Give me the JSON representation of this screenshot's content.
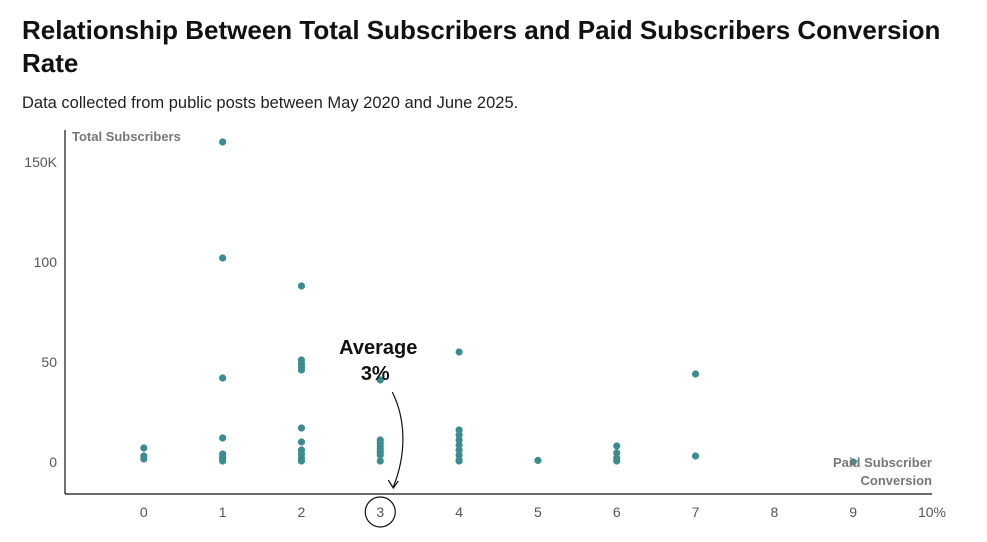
{
  "header": {
    "title": "Relationship Between Total Subscribers and Paid Subscribers Conversion Rate",
    "subtitle": "Data collected from public posts between May 2020 and June 2025."
  },
  "colors": {
    "point": "#3a8c90",
    "axis": "#111111",
    "tick": "#555555",
    "axis_title": "#777777"
  },
  "chart_data": {
    "type": "scatter",
    "title": "Relationship Between Total Subscribers and Paid Subscribers Conversion Rate",
    "subtitle": "Data collected from public posts between May 2020 and June 2025.",
    "xlabel": "Paid Subscriber Conversion",
    "ylabel": "Total Subscribers",
    "xlim": [
      -1,
      10
    ],
    "ylim": [
      -16,
      166
    ],
    "x_ticks": [
      0,
      1,
      2,
      3,
      4,
      5,
      6,
      7,
      8,
      9,
      10
    ],
    "x_tick_labels": [
      "0",
      "1",
      "2",
      "3",
      "4",
      "5",
      "6",
      "7",
      "8",
      "9",
      "10%"
    ],
    "y_ticks": [
      0,
      50,
      100,
      150
    ],
    "y_tick_labels": [
      "0",
      "50",
      "100",
      "150K"
    ],
    "grid": false,
    "highlighted_x_tick": 3,
    "annotation": {
      "line1": "Average",
      "line2": "3%",
      "x": 3
    },
    "series": [
      {
        "points": [
          [
            0,
            7
          ],
          [
            0,
            3
          ],
          [
            0,
            1.5
          ],
          [
            1,
            160
          ],
          [
            1,
            102
          ],
          [
            1,
            42
          ],
          [
            1,
            12
          ],
          [
            1,
            4
          ],
          [
            1,
            2.5
          ],
          [
            1,
            1.5
          ],
          [
            1,
            0.5
          ],
          [
            2,
            88
          ],
          [
            2,
            51
          ],
          [
            2,
            49
          ],
          [
            2,
            47.5
          ],
          [
            2,
            46
          ],
          [
            2,
            17
          ],
          [
            2,
            10
          ],
          [
            2,
            6
          ],
          [
            2,
            4
          ],
          [
            2,
            2
          ],
          [
            2,
            0.5
          ],
          [
            3,
            41
          ],
          [
            3,
            11
          ],
          [
            3,
            9.5
          ],
          [
            3,
            8
          ],
          [
            3,
            6.5
          ],
          [
            3,
            5
          ],
          [
            3,
            3.5
          ],
          [
            3,
            0.5
          ],
          [
            4,
            55
          ],
          [
            4,
            16
          ],
          [
            4,
            13.5
          ],
          [
            4,
            11
          ],
          [
            4,
            8.5
          ],
          [
            4,
            6
          ],
          [
            4,
            3.5
          ],
          [
            4,
            1
          ],
          [
            4,
            0.5
          ],
          [
            5,
            0.8
          ],
          [
            6,
            8
          ],
          [
            6,
            4.5
          ],
          [
            6,
            2
          ],
          [
            6,
            0.5
          ],
          [
            7,
            44
          ],
          [
            7,
            3
          ],
          [
            9,
            0
          ]
        ]
      }
    ]
  }
}
